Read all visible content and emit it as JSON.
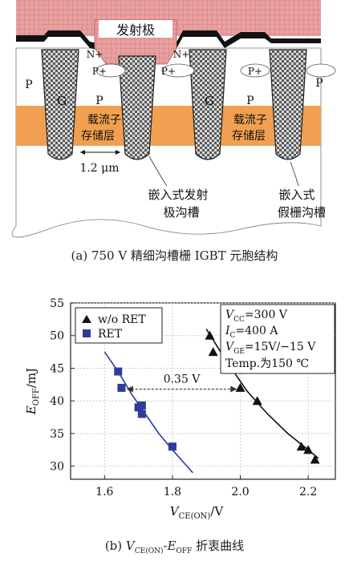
{
  "structure": {
    "emitter_label": "发射极",
    "n_plus_left": "N+",
    "n_plus_right": "N+",
    "p_plus_labels": [
      "P+",
      "P+",
      "P+"
    ],
    "p_labels": [
      "P",
      "P",
      "P",
      "P"
    ],
    "gate_labels": [
      "G",
      "G"
    ],
    "storage_layer_left_1": "载流子",
    "storage_layer_left_2": "存储层",
    "storage_layer_right_1": "载流子",
    "storage_layer_right_2": "存储层",
    "dimension_label": "1.2 μm",
    "embedded_emitter_1": "嵌入式发射",
    "embedded_emitter_2": "极沟槽",
    "embedded_dummy_1": "嵌入式",
    "embedded_dummy_2": "假栅沟槽"
  },
  "caption_a": "(a) 750 V 精细沟槽栅 IGBT 元胞结构",
  "caption_b": {
    "prefix": "(b) ",
    "v": "V",
    "v_sub": "CE(ON)",
    "mid": "-",
    "e": "E",
    "e_sub": "OFF",
    "suffix": " 折衷曲线"
  },
  "chart_data": {
    "type": "scatter",
    "xlabel_main": "V",
    "xlabel_sub": "CE(ON)",
    "xlabel_unit": "/V",
    "ylabel_main": "E",
    "ylabel_sub": "OFF",
    "ylabel_unit": "/mJ",
    "xlim": [
      1.5,
      2.28
    ],
    "ylim": [
      28,
      55
    ],
    "xticks": [
      "1.6",
      "1.8",
      "2.0",
      "2.2"
    ],
    "yticks": [
      "55",
      "50",
      "45",
      "40",
      "35",
      "30"
    ],
    "grid": true,
    "legend_position": "top-left",
    "series": [
      {
        "name": "w/o RET",
        "marker": "triangle",
        "color": "#111111",
        "points": [
          [
            1.91,
            50.0
          ],
          [
            1.92,
            47.5
          ],
          [
            2.0,
            42.0
          ],
          [
            2.05,
            40.0
          ],
          [
            2.18,
            33.0
          ],
          [
            2.2,
            32.5
          ],
          [
            2.22,
            31.0
          ]
        ],
        "fit": [
          [
            1.9,
            51.0
          ],
          [
            1.96,
            46.0
          ],
          [
            2.02,
            41.5
          ],
          [
            2.08,
            38.0
          ],
          [
            2.14,
            35.0
          ],
          [
            2.2,
            32.5
          ],
          [
            2.23,
            31.2
          ]
        ]
      },
      {
        "name": "RET",
        "marker": "square",
        "color": "#2f3a9c",
        "points": [
          [
            1.64,
            44.5
          ],
          [
            1.65,
            42.0
          ],
          [
            1.7,
            39.0
          ],
          [
            1.71,
            38.0
          ],
          [
            1.71,
            39.3
          ],
          [
            1.8,
            33.0
          ]
        ],
        "fit": [
          [
            1.6,
            47.5
          ],
          [
            1.64,
            44.5
          ],
          [
            1.68,
            41.0
          ],
          [
            1.72,
            38.0
          ],
          [
            1.76,
            35.0
          ],
          [
            1.8,
            32.5
          ],
          [
            1.86,
            29.0
          ]
        ]
      }
    ],
    "annotation_delta": "0.35 V",
    "conditions": {
      "vcc_main": "V",
      "vcc_sub": "CC",
      "vcc_val": "=300 V",
      "ic_main": "I",
      "ic_sub": "C",
      "ic_val": "=400 A",
      "vge_main": "V",
      "vge_sub": "GE",
      "vge_val": "=15V/−15 V",
      "temp": "Temp.为150 ℃"
    }
  }
}
